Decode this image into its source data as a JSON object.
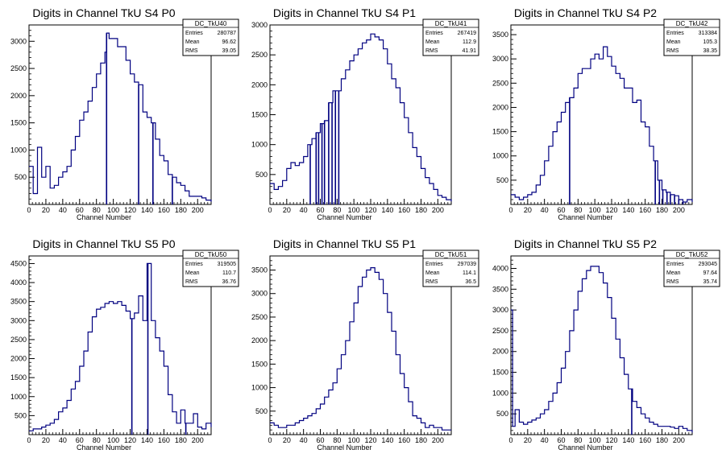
{
  "colors": {
    "line": "#000080",
    "frame": "#000000",
    "background": "#ffffff"
  },
  "chart_data": [
    {
      "type": "line",
      "title": "Digits in Channel TkU S4 P0",
      "xlabel": "Channel Number",
      "xlim": [
        0,
        216
      ],
      "ylim": [
        0,
        3300
      ],
      "xticks": [
        0,
        20,
        40,
        60,
        80,
        100,
        120,
        140,
        160,
        180,
        200
      ],
      "yticks": [
        500,
        1000,
        1500,
        2000,
        2500,
        3000
      ],
      "stats": {
        "name": "DC_TkU40",
        "entries": "280787",
        "mean": "96.62",
        "rms": "39.05"
      },
      "x": [
        0,
        5,
        10,
        15,
        20,
        25,
        30,
        35,
        40,
        45,
        50,
        55,
        60,
        65,
        70,
        75,
        80,
        85,
        90,
        92,
        95,
        100,
        105,
        110,
        115,
        120,
        125,
        130,
        135,
        140,
        145,
        150,
        155,
        160,
        165,
        170,
        175,
        180,
        185,
        190,
        195,
        200,
        205,
        210,
        216
      ],
      "y": [
        700,
        200,
        1050,
        500,
        700,
        300,
        350,
        500,
        600,
        700,
        1000,
        1250,
        1550,
        1700,
        1900,
        2150,
        2400,
        2600,
        2800,
        3150,
        3050,
        3050,
        2900,
        2900,
        2650,
        2400,
        2250,
        2200,
        1700,
        1600,
        1500,
        1200,
        900,
        800,
        550,
        500,
        400,
        350,
        250,
        150,
        150,
        150,
        120,
        80,
        50
      ],
      "spikes": [
        [
          92,
          0
        ],
        [
          130,
          0
        ],
        [
          147,
          0
        ],
        [
          170,
          0
        ]
      ]
    },
    {
      "type": "line",
      "title": "Digits in Channel TkU S4 P1",
      "xlabel": "Channel Number",
      "xlim": [
        0,
        216
      ],
      "ylim": [
        0,
        3000
      ],
      "xticks": [
        0,
        20,
        40,
        60,
        80,
        100,
        120,
        140,
        160,
        180,
        200
      ],
      "yticks": [
        500,
        1000,
        1500,
        2000,
        2500,
        3000
      ],
      "stats": {
        "name": "DC_TkU41",
        "entries": "267419",
        "mean": "112.9",
        "rms": "41.91"
      },
      "x": [
        0,
        5,
        10,
        15,
        20,
        25,
        30,
        35,
        40,
        45,
        50,
        55,
        60,
        65,
        70,
        75,
        80,
        85,
        90,
        95,
        100,
        105,
        110,
        115,
        120,
        125,
        130,
        135,
        140,
        145,
        150,
        155,
        160,
        165,
        170,
        175,
        180,
        185,
        190,
        195,
        200,
        205,
        210,
        216
      ],
      "y": [
        350,
        250,
        300,
        400,
        600,
        700,
        650,
        700,
        800,
        1000,
        1100,
        1200,
        1350,
        1400,
        1700,
        1900,
        1900,
        2100,
        2250,
        2400,
        2500,
        2600,
        2700,
        2750,
        2850,
        2800,
        2750,
        2600,
        2350,
        2100,
        1950,
        1700,
        1450,
        1200,
        950,
        800,
        600,
        450,
        350,
        250,
        150,
        120,
        80,
        50
      ],
      "spikes": [
        [
          48,
          0
        ],
        [
          55,
          0
        ],
        [
          58,
          0
        ],
        [
          62,
          0
        ],
        [
          65,
          0
        ],
        [
          70,
          0
        ],
        [
          74,
          0
        ],
        [
          78,
          0
        ],
        [
          82,
          0
        ]
      ]
    },
    {
      "type": "line",
      "title": "Digits in Channel TkU S4 P2",
      "xlabel": "Channel Number",
      "xlim": [
        0,
        216
      ],
      "ylim": [
        0,
        3700
      ],
      "xticks": [
        0,
        20,
        40,
        60,
        80,
        100,
        120,
        140,
        160,
        180,
        200
      ],
      "yticks": [
        500,
        1000,
        1500,
        2000,
        2500,
        3000,
        3500
      ],
      "stats": {
        "name": "DC_TkU42",
        "entries": "313384",
        "mean": "105.3",
        "rms": "38.35"
      },
      "x": [
        0,
        5,
        10,
        15,
        20,
        25,
        30,
        35,
        40,
        45,
        50,
        55,
        60,
        65,
        70,
        75,
        80,
        85,
        90,
        95,
        100,
        105,
        110,
        115,
        120,
        125,
        130,
        135,
        140,
        145,
        150,
        155,
        160,
        165,
        170,
        175,
        180,
        185,
        190,
        195,
        200,
        205,
        210,
        216
      ],
      "y": [
        200,
        150,
        100,
        150,
        200,
        250,
        400,
        600,
        900,
        1200,
        1500,
        1700,
        1900,
        2100,
        2200,
        2400,
        2700,
        2800,
        2800,
        3000,
        3100,
        3000,
        3250,
        3050,
        2850,
        2700,
        2600,
        2400,
        2400,
        2100,
        2150,
        1700,
        1600,
        1200,
        900,
        500,
        300,
        250,
        200,
        180,
        100,
        50,
        100,
        50
      ],
      "spikes": [
        [
          70,
          0
        ],
        [
          172,
          0
        ],
        [
          177,
          0
        ],
        [
          181,
          0
        ],
        [
          186,
          0
        ],
        [
          190,
          0
        ],
        [
          195,
          0
        ],
        [
          200,
          0
        ],
        [
          205,
          0
        ]
      ]
    },
    {
      "type": "line",
      "title": "Digits in Channel TkU S5 P0",
      "xlabel": "Channel Number",
      "xlim": [
        0,
        216
      ],
      "ylim": [
        0,
        4700
      ],
      "xticks": [
        0,
        20,
        40,
        60,
        80,
        100,
        120,
        140,
        160,
        180,
        200
      ],
      "yticks": [
        500,
        1000,
        1500,
        2000,
        2500,
        3000,
        3500,
        4000,
        4500
      ],
      "stats": {
        "name": "DC_TkU50",
        "entries": "319505",
        "mean": "110.7",
        "rms": "36.76"
      },
      "x": [
        0,
        5,
        10,
        15,
        20,
        25,
        30,
        35,
        40,
        45,
        50,
        55,
        60,
        65,
        70,
        75,
        80,
        85,
        90,
        95,
        100,
        105,
        110,
        115,
        120,
        125,
        130,
        135,
        140,
        145,
        150,
        155,
        160,
        165,
        170,
        175,
        180,
        185,
        190,
        195,
        200,
        205,
        210,
        216
      ],
      "y": [
        100,
        150,
        150,
        200,
        250,
        300,
        400,
        600,
        700,
        900,
        1200,
        1400,
        1800,
        2200,
        2700,
        3100,
        3300,
        3350,
        3450,
        3500,
        3450,
        3500,
        3400,
        3250,
        3050,
        3200,
        3650,
        3000,
        4500,
        3000,
        2550,
        2200,
        1800,
        1050,
        600,
        300,
        650,
        300,
        300,
        550,
        200,
        150,
        300,
        200
      ],
      "spikes": [
        [
          122,
          0
        ],
        [
          141,
          0
        ],
        [
          186,
          0
        ]
      ]
    },
    {
      "type": "line",
      "title": "Digits in Channel TkU S5 P1",
      "xlabel": "Channel Number",
      "xlim": [
        0,
        216
      ],
      "ylim": [
        0,
        3800
      ],
      "xticks": [
        0,
        20,
        40,
        60,
        80,
        100,
        120,
        140,
        160,
        180,
        200
      ],
      "yticks": [
        500,
        1000,
        1500,
        2000,
        2500,
        3000,
        3500
      ],
      "stats": {
        "name": "DC_TkU51",
        "entries": "297039",
        "mean": "114.1",
        "rms": "36.5"
      },
      "x": [
        0,
        5,
        10,
        15,
        20,
        25,
        30,
        35,
        40,
        45,
        50,
        55,
        60,
        65,
        70,
        75,
        80,
        85,
        90,
        95,
        100,
        105,
        110,
        115,
        120,
        125,
        130,
        135,
        140,
        145,
        150,
        155,
        160,
        165,
        170,
        175,
        180,
        185,
        190,
        195,
        200,
        205,
        210,
        216
      ],
      "y": [
        250,
        200,
        150,
        150,
        200,
        200,
        250,
        300,
        350,
        400,
        450,
        550,
        650,
        800,
        950,
        1100,
        1400,
        1700,
        2000,
        2400,
        2800,
        3150,
        3350,
        3500,
        3550,
        3450,
        3300,
        3000,
        2600,
        2200,
        1700,
        1300,
        1000,
        700,
        400,
        350,
        250,
        150,
        200,
        150,
        150,
        100,
        100,
        100
      ],
      "spikes": []
    },
    {
      "type": "line",
      "title": "Digits in Channel TkU S5 P2",
      "xlabel": "Channel Number",
      "xlim": [
        0,
        216
      ],
      "ylim": [
        0,
        4300
      ],
      "xticks": [
        0,
        20,
        40,
        60,
        80,
        100,
        120,
        140,
        160,
        180,
        200
      ],
      "yticks": [
        500,
        1000,
        1500,
        2000,
        2500,
        3000,
        3500,
        4000
      ],
      "stats": {
        "name": "DC_TkU52",
        "entries": "293045",
        "mean": "97.64",
        "rms": "35.74"
      },
      "x": [
        0,
        2,
        5,
        10,
        15,
        20,
        25,
        30,
        35,
        40,
        45,
        50,
        55,
        60,
        65,
        70,
        75,
        80,
        85,
        90,
        95,
        100,
        105,
        110,
        115,
        120,
        125,
        130,
        135,
        140,
        145,
        150,
        155,
        160,
        165,
        170,
        175,
        180,
        185,
        190,
        195,
        200,
        205,
        210,
        216
      ],
      "y": [
        3000,
        200,
        600,
        300,
        250,
        300,
        350,
        400,
        500,
        600,
        800,
        1000,
        1250,
        1600,
        2000,
        2500,
        3000,
        3450,
        3750,
        3950,
        4050,
        4050,
        3900,
        3650,
        3300,
        2800,
        2300,
        1850,
        1450,
        1100,
        800,
        650,
        500,
        400,
        300,
        250,
        200,
        200,
        200,
        180,
        150,
        200,
        150,
        100,
        50
      ],
      "spikes": [
        [
          144,
          0
        ]
      ]
    }
  ]
}
